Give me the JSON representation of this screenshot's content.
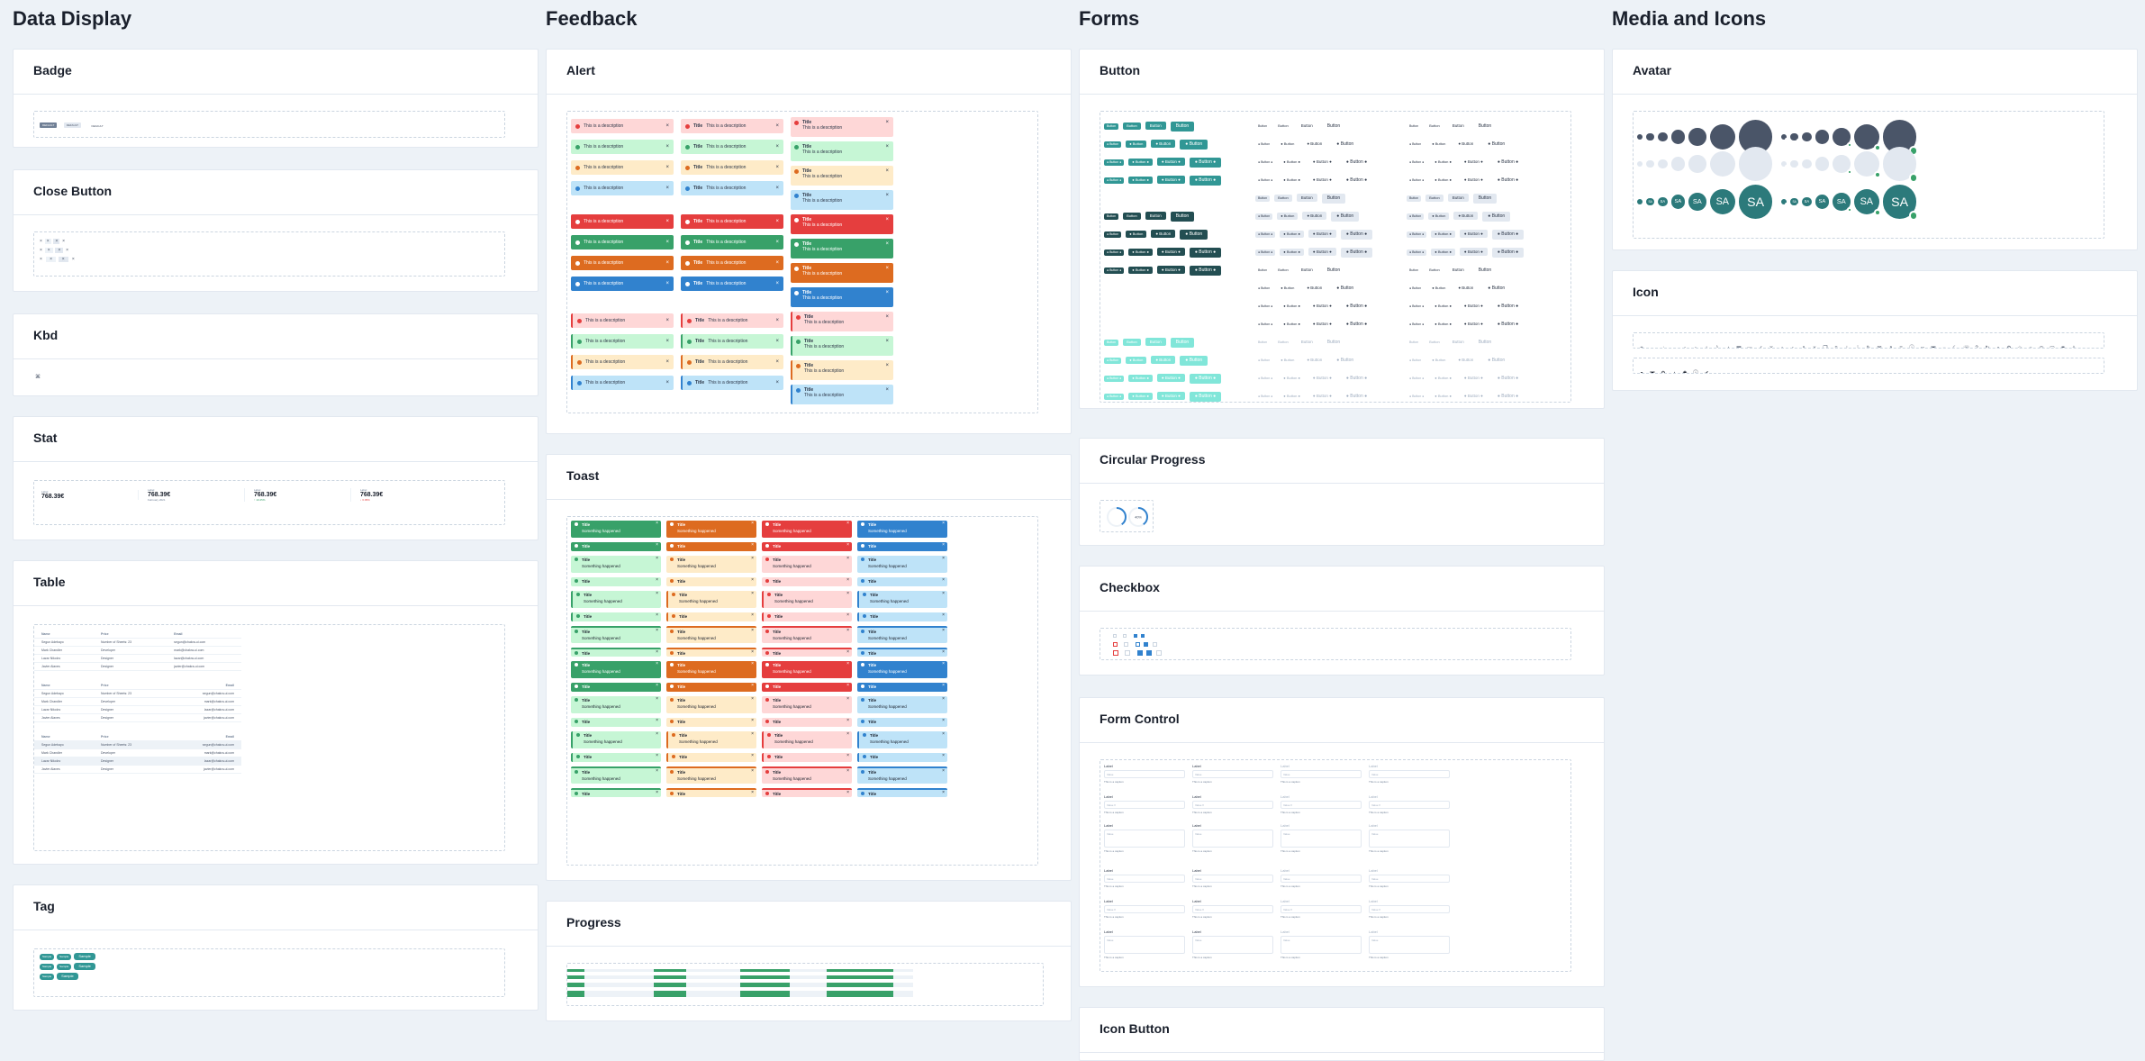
{
  "columns": {
    "data_display": "Data Display",
    "feedback": "Feedback",
    "forms": "Forms",
    "media": "Media and Icons"
  },
  "cards": {
    "badge": "Badge",
    "close_button": "Close Button",
    "kbd": "Kbd",
    "stat": "Stat",
    "table": "Table",
    "tag": "Tag",
    "alert": "Alert",
    "toast": "Toast",
    "progress": "Progress",
    "button": "Button",
    "circular_progress": "Circular Progress",
    "checkbox": "Checkbox",
    "form_control": "Form Control",
    "icon_button": "Icon Button",
    "avatar": "Avatar",
    "icon": "Icon"
  },
  "badges": [
    "DEFAULT",
    "DEFAULT",
    "DEFAULT"
  ],
  "kbd": {
    "key": "⌘"
  },
  "stats": [
    {
      "label": "Label",
      "value": "768.39€",
      "help": ""
    },
    {
      "label": "Label",
      "value": "768.39€",
      "help": "February 2021"
    },
    {
      "label": "Label",
      "value": "768.39€",
      "help": "↑ 10.25%"
    },
    {
      "label": "Label",
      "value": "768.39€",
      "help": "↓ 6.05%"
    }
  ],
  "table": {
    "headers": [
      "Name",
      "Price",
      "Email"
    ],
    "rows": [
      [
        "Segun Adebayo",
        "Number of Sheets: 23",
        "segun@chakra-ui.com"
      ],
      [
        "Mark Chandler",
        "Developer",
        "mark@chakra-ui.com"
      ],
      [
        "Lazar Nikolov",
        "Designer",
        "lazar@chakra-ui.com"
      ],
      [
        "Javier Alaves",
        "Designer",
        "javier@chakra-ui.com"
      ]
    ]
  },
  "tags": [
    "Sample",
    "Sample",
    "Sample",
    "Sample",
    "Sample",
    "Sample",
    "Sample",
    "Sample"
  ],
  "alert": {
    "title": "Title",
    "description": "This is a description"
  },
  "toast": {
    "title": "Title",
    "description": "Something happened"
  },
  "button": {
    "label": "Button"
  },
  "circular_progress": {
    "value": "40%",
    "fill": 0.4
  },
  "form_control": {
    "label": "Label",
    "placeholder": "Value",
    "select_value": "Value",
    "helper": "This is a caption"
  },
  "avatar": {
    "initials": "SA"
  },
  "icons": {
    "row1": [
      "add-icon",
      "arrow-back-icon",
      "arrow-down-icon",
      "arrow-forward-icon",
      "arrow-left-icon",
      "arrow-right-icon",
      "arrow-up-icon",
      "attachment-icon",
      "bell-icon",
      "calendar-icon",
      "chat-icon",
      "check-icon",
      "chevron-down-icon",
      "chevron-left-icon",
      "chevron-right-icon",
      "chevron-up-icon",
      "close-icon",
      "copy-icon",
      "delete-icon",
      "download-icon",
      "drag-icon",
      "edit-icon",
      "email-icon",
      "external-link-icon",
      "hamburger-icon",
      "info-icon",
      "link-icon",
      "lock-icon",
      "minus-icon",
      "moon-icon",
      "phone-icon",
      "question-icon",
      "repeat-icon",
      "search-icon",
      "settings-icon",
      "star-icon",
      "sun-icon",
      "time-icon",
      "unlock-icon",
      "view-icon",
      "warning-icon"
    ],
    "row2": [
      "person-icon",
      "lock-icon",
      "settings-icon",
      "bell-icon",
      "gear-icon",
      "info-icon",
      "check-circle-icon"
    ]
  },
  "colors": {
    "accent": "#319795",
    "red": "#e53e3e",
    "green": "#38a169",
    "orange": "#dd6b20",
    "blue": "#3182ce",
    "background": "#edf2f7"
  }
}
